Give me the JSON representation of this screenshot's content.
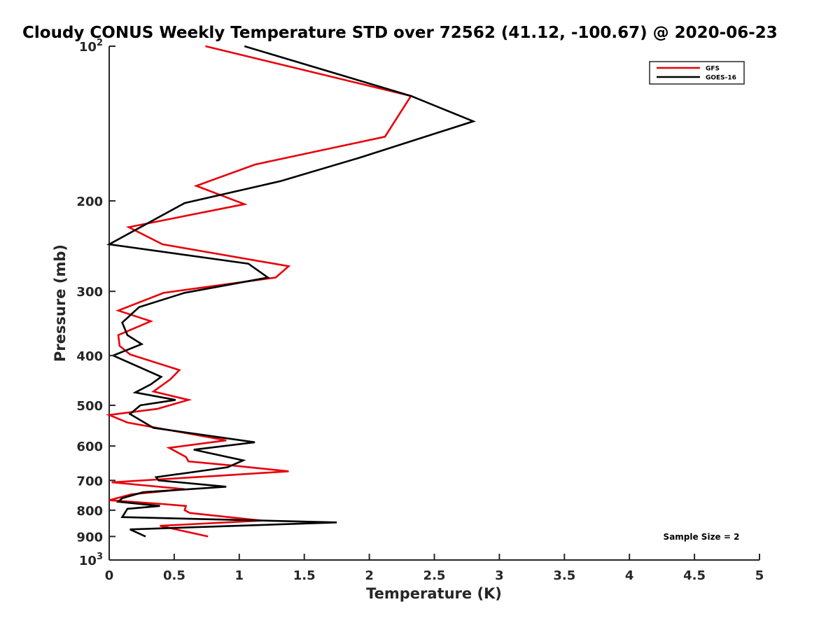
{
  "chart_data": {
    "type": "line",
    "title": "Cloudy CONUS Weekly Temperature STD over 72562 (41.12, -100.67) @ 2020-06-23",
    "xlabel": "Temperature (K)",
    "ylabel": "Pressure (mb)",
    "xlim": [
      0,
      5
    ],
    "ylim": [
      100,
      1000
    ],
    "y_scale": "log",
    "y_reversed": true,
    "grid": false,
    "legend_position": "top-right",
    "x_ticks": [
      "0",
      "0.5",
      "1",
      "1.5",
      "2",
      "2.5",
      "3",
      "3.5",
      "4",
      "4.5",
      "5"
    ],
    "y_ticks": [
      {
        "value": 100,
        "base": "10",
        "exp": "2"
      },
      {
        "value": 200,
        "label": "200"
      },
      {
        "value": 300,
        "label": "300"
      },
      {
        "value": 400,
        "label": "400"
      },
      {
        "value": 500,
        "label": "500"
      },
      {
        "value": 600,
        "label": "600"
      },
      {
        "value": 700,
        "label": "700"
      },
      {
        "value": 800,
        "label": "800"
      },
      {
        "value": 900,
        "label": "900"
      },
      {
        "value": 1000,
        "base": "10",
        "exp": "3"
      }
    ],
    "annotation": "Sample Size = 2",
    "series": [
      {
        "name": "GFS",
        "color": "#e8000b",
        "points": [
          [
            0.74,
            100
          ],
          [
            2.32,
            125
          ],
          [
            2.12,
            150
          ],
          [
            1.12,
            170
          ],
          [
            0.67,
            187
          ],
          [
            1.04,
            203
          ],
          [
            0.15,
            225
          ],
          [
            0.41,
            243
          ],
          [
            1.38,
            268
          ],
          [
            1.28,
            282
          ],
          [
            0.42,
            302
          ],
          [
            0.07,
            327
          ],
          [
            0.32,
            343
          ],
          [
            0.07,
            365
          ],
          [
            0.08,
            383
          ],
          [
            0.16,
            398
          ],
          [
            0.54,
            427
          ],
          [
            0.47,
            445
          ],
          [
            0.34,
            470
          ],
          [
            0.61,
            488
          ],
          [
            0.37,
            508
          ],
          [
            0.0,
            522
          ],
          [
            0.14,
            540
          ],
          [
            0.9,
            585
          ],
          [
            0.46,
            605
          ],
          [
            0.59,
            630
          ],
          [
            0.61,
            643
          ],
          [
            0.95,
            655
          ],
          [
            1.38,
            672
          ],
          [
            0.86,
            685
          ],
          [
            0.02,
            706
          ],
          [
            0.58,
            728
          ],
          [
            0.17,
            745
          ],
          [
            0.0,
            765
          ],
          [
            0.41,
            778
          ],
          [
            0.59,
            785
          ],
          [
            0.58,
            800
          ],
          [
            0.62,
            810
          ],
          [
            1.17,
            838
          ],
          [
            0.39,
            858
          ],
          [
            0.76,
            900
          ]
        ]
      },
      {
        "name": "GOES-16",
        "color": "#000000",
        "points": [
          [
            1.04,
            100
          ],
          [
            2.32,
            125
          ],
          [
            2.8,
            140
          ],
          [
            1.92,
            165
          ],
          [
            1.32,
            183
          ],
          [
            0.58,
            202
          ],
          [
            0.0,
            243
          ],
          [
            1.07,
            265
          ],
          [
            1.22,
            282
          ],
          [
            0.58,
            302
          ],
          [
            0.23,
            322
          ],
          [
            0.1,
            345
          ],
          [
            0.14,
            365
          ],
          [
            0.25,
            380
          ],
          [
            0.03,
            400
          ],
          [
            0.4,
            440
          ],
          [
            0.32,
            455
          ],
          [
            0.2,
            472
          ],
          [
            0.51,
            488
          ],
          [
            0.24,
            500
          ],
          [
            0.16,
            520
          ],
          [
            0.34,
            553
          ],
          [
            1.12,
            590
          ],
          [
            0.65,
            610
          ],
          [
            1.03,
            640
          ],
          [
            0.91,
            660
          ],
          [
            0.36,
            690
          ],
          [
            0.38,
            700
          ],
          [
            0.9,
            720
          ],
          [
            0.26,
            738
          ],
          [
            0.1,
            758
          ],
          [
            0.07,
            770
          ],
          [
            0.39,
            785
          ],
          [
            0.14,
            795
          ],
          [
            0.1,
            825
          ],
          [
            1.75,
            845
          ],
          [
            0.16,
            872
          ],
          [
            0.28,
            900
          ]
        ]
      }
    ]
  }
}
